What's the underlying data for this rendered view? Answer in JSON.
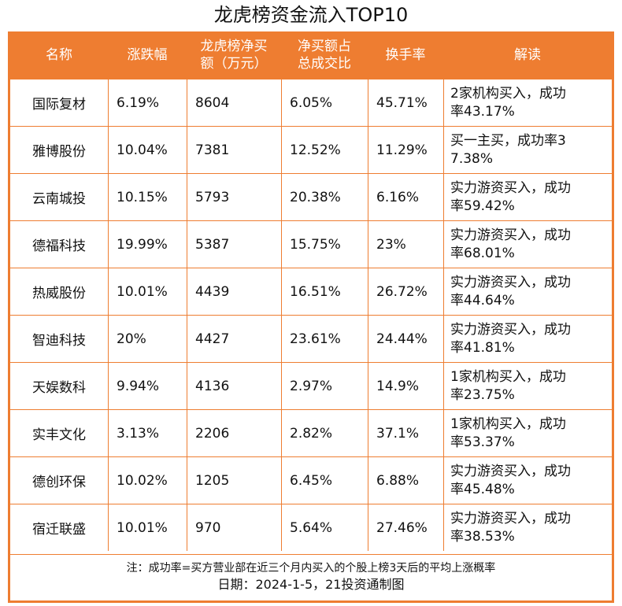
{
  "title": "龙虎榜资金流入TOP10",
  "headers": [
    "名称",
    "涨跌幅",
    "龙虎榜净买额（万元）",
    "净买额占总成交比",
    "换手率",
    "解读"
  ],
  "header_lines": {
    "col3_line1": "龙虎榜净买",
    "col3_line2": "额（万元）",
    "col4_line1": "净买额占",
    "col4_line2": "总成交比"
  },
  "rows": [
    {
      "name": "国际复材",
      "change": "6.19%",
      "net_buy": "8604",
      "ratio": "6.05%",
      "turnover": "45.71%",
      "note_l1": "2家机构买入，成功",
      "note_l2": "率43.17%"
    },
    {
      "name": "雅博股份",
      "change": "10.04%",
      "net_buy": "7381",
      "ratio": "12.52%",
      "turnover": "11.29%",
      "note_l1": "买一主买，成功率3",
      "note_l2": "7.38%"
    },
    {
      "name": "云南城投",
      "change": "10.15%",
      "net_buy": "5793",
      "ratio": "20.38%",
      "turnover": "6.16%",
      "note_l1": "实力游资买入，成功",
      "note_l2": "率59.42%"
    },
    {
      "name": "德福科技",
      "change": "19.99%",
      "net_buy": "5387",
      "ratio": "15.75%",
      "turnover": "23%",
      "note_l1": "实力游资买入，成功",
      "note_l2": "率68.01%"
    },
    {
      "name": "热威股份",
      "change": "10.01%",
      "net_buy": "4439",
      "ratio": "16.51%",
      "turnover": "26.72%",
      "note_l1": "实力游资买入，成功",
      "note_l2": "率44.64%"
    },
    {
      "name": "智迪科技",
      "change": "20%",
      "net_buy": "4427",
      "ratio": "23.61%",
      "turnover": "24.44%",
      "note_l1": "实力游资买入，成功",
      "note_l2": "率41.81%"
    },
    {
      "name": "天娱数科",
      "change": "9.94%",
      "net_buy": "4136",
      "ratio": "2.97%",
      "turnover": "14.9%",
      "note_l1": "1家机构买入，成功",
      "note_l2": "率23.75%"
    },
    {
      "name": "实丰文化",
      "change": "3.13%",
      "net_buy": "2206",
      "ratio": "2.82%",
      "turnover": "37.1%",
      "note_l1": "1家机构买入，成功",
      "note_l2": "率53.37%"
    },
    {
      "name": "德创环保",
      "change": "10.02%",
      "net_buy": "1205",
      "ratio": "6.45%",
      "turnover": "6.88%",
      "note_l1": "实力游资买入，成功",
      "note_l2": "率45.48%"
    },
    {
      "name": "宿迁联盛",
      "change": "10.01%",
      "net_buy": "970",
      "ratio": "5.64%",
      "turnover": "27.46%",
      "note_l1": "实力游资买入，成功",
      "note_l2": "率38.53%"
    }
  ],
  "footnote": "注：成功率=买方营业部在近三个月内买入的个股上榜3天后的平均上涨概率",
  "dateline": "日期：2024-1-5，21投资通制图",
  "colors": {
    "accent": "#ee7d31",
    "header_text": "#ffffff"
  }
}
